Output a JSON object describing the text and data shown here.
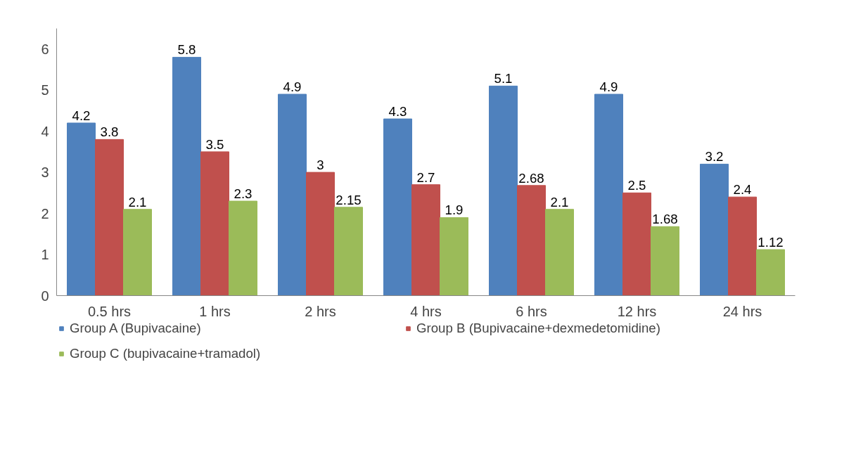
{
  "chart_data": {
    "type": "bar",
    "categories": [
      "0.5 hrs",
      "1 hrs",
      "2 hrs",
      "4 hrs",
      "6 hrs",
      "12 hrs",
      "24 hrs"
    ],
    "series": [
      {
        "name": "Group A (Bupivacaine)",
        "color": "#4f81bd",
        "values": [
          4.2,
          5.8,
          4.9,
          4.3,
          5.1,
          4.9,
          3.2
        ]
      },
      {
        "name": "Group B (Bupivacaine+dexmedetomidine)",
        "color": "#c0504d",
        "values": [
          3.8,
          3.5,
          3,
          2.7,
          2.68,
          2.5,
          2.4
        ]
      },
      {
        "name": "Group C (bupivacaine+tramadol)",
        "color": "#9bbb59",
        "values": [
          2.1,
          2.3,
          2.15,
          1.9,
          2.1,
          1.68,
          1.12
        ]
      }
    ],
    "ylim": [
      0,
      6.5
    ],
    "yticks": [
      0,
      1,
      2,
      3,
      4,
      5,
      6
    ],
    "data_labels": true,
    "grid": false,
    "legend": "bottom"
  }
}
